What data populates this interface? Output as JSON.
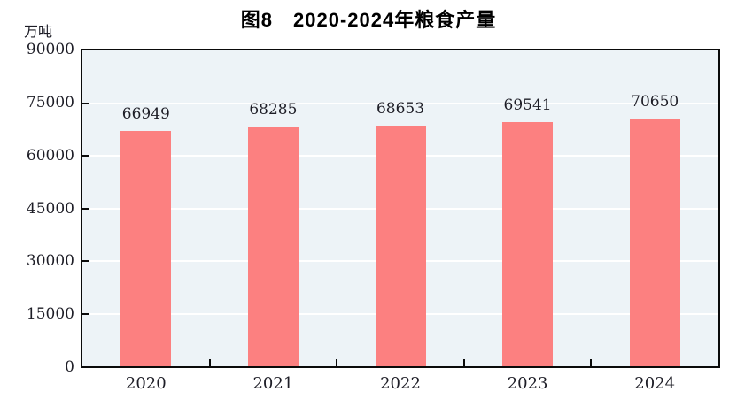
{
  "chart_data": {
    "type": "bar",
    "title": "图8　2020-2024年粮食产量",
    "ylabel": "万吨",
    "xlabel": "",
    "categories": [
      "2020",
      "2021",
      "2022",
      "2023",
      "2024"
    ],
    "values": [
      66949,
      68285,
      68653,
      69541,
      70650
    ],
    "ylim": [
      0,
      90000
    ],
    "ytick_interval": 15000,
    "yticks": [
      "90000",
      "75000",
      "60000",
      "45000",
      "30000",
      "15000",
      "0"
    ],
    "grid": "horizontal white gridlines on",
    "legend_position": "none",
    "colors": {
      "bar_fill": "#FC8080",
      "plot_background": "#EDF3F7",
      "gridline": "#FFFFFF",
      "axis_border": "#0A0A0A",
      "text": "#1D1D26",
      "title_text": "#000000",
      "page_background": "#FFFFFF"
    }
  }
}
